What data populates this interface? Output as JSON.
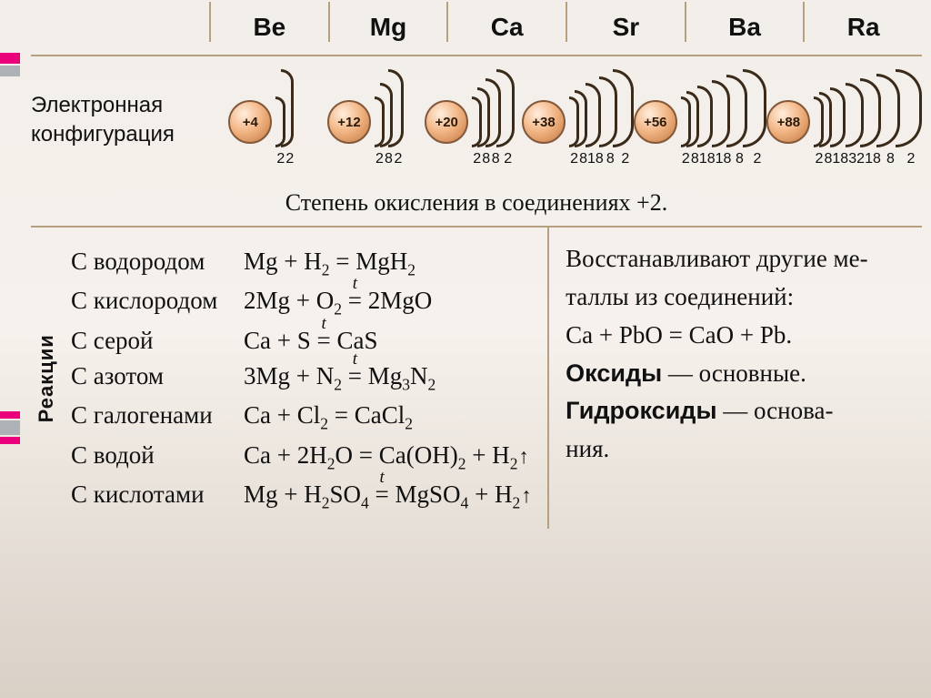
{
  "colors": {
    "page_gradient": [
      "#f2eee9",
      "#f6f1ec",
      "#d9d0c6"
    ],
    "rule": "#b7a07f",
    "shell_stroke": "#3a2a1a",
    "nucleus_gradient": [
      "#ffeedd",
      "#f3b787",
      "#c3783f"
    ],
    "nucleus_border": "#83593b",
    "accent_pink": "#e9007a",
    "accent_gray": "#aeb1b6"
  },
  "typography": {
    "header_font": "Arial, Helvetica, sans-serif",
    "body_font": "\"Times New Roman\", Georgia, serif",
    "element_symbol_pt": 28,
    "config_label_pt": 24,
    "equation_pt": 27,
    "shell_number_pt": 16,
    "nucleus_label_pt": 15
  },
  "header": {
    "elements": [
      {
        "sym": "Be",
        "charge": "+4",
        "shells": [
          2,
          2
        ]
      },
      {
        "sym": "Mg",
        "charge": "+12",
        "shells": [
          2,
          8,
          2
        ]
      },
      {
        "sym": "Ca",
        "charge": "+20",
        "shells": [
          2,
          8,
          8,
          2
        ]
      },
      {
        "sym": "Sr",
        "charge": "+38",
        "shells": [
          2,
          8,
          18,
          8,
          2
        ]
      },
      {
        "sym": "Ba",
        "charge": "+56",
        "shells": [
          2,
          8,
          18,
          18,
          8,
          2
        ]
      },
      {
        "sym": "Ra",
        "charge": "+88",
        "shells": [
          2,
          8,
          18,
          32,
          18,
          8,
          2
        ]
      }
    ],
    "config_label_line1": "Электронная",
    "config_label_line2": "конфигурация"
  },
  "oxidation_banner": "Степень окисления в соединениях +2.",
  "reactions": {
    "side_label": "Реакции",
    "left": [
      {
        "with": "С водородом",
        "eqn": "Mg + H<sub>2</sub> = MgH<sub>2</sub>"
      },
      {
        "with": "С кислородом",
        "eqn": "2Mg + O<sub>2</sub> <span class=\"ovt\">=</span> 2MgO"
      },
      {
        "with": "С серой",
        "eqn": "Ca + S <span class=\"ovt\">=</span> CaS"
      },
      {
        "with": "С азотом",
        "eqn": "3Mg + N<sub>2</sub> <span class=\"ovt\">=</span> Mg<sub>3</sub>N<sub>2</sub>"
      },
      {
        "with": "С галогенами",
        "eqn": "Ca + Cl<sub>2</sub> = CaCl<sub>2</sub>"
      },
      {
        "with": "С водой",
        "eqn": "Ca + 2H<sub>2</sub>O = Ca(OH)<sub>2</sub> + H<sub>2</sub><span class=\"up\"></span>"
      },
      {
        "with": "С кислотами",
        "eqn": "Mg + H<sub>2</sub>SO<sub>4</sub> <span class=\"ovt\">=</span> MgSO<sub>4</sub> + H<sub>2</sub><span class=\"up\"></span>"
      }
    ],
    "right_html": "Восстанавливают другие ме-<br>таллы из соединений:<br>Ca + PbO = CaO + Pb.<br><b class=\"k\">Оксиды</b> &mdash; основные.<br><b class=\"k\">Гидроксиды</b> &mdash; основа-<br>ния."
  }
}
